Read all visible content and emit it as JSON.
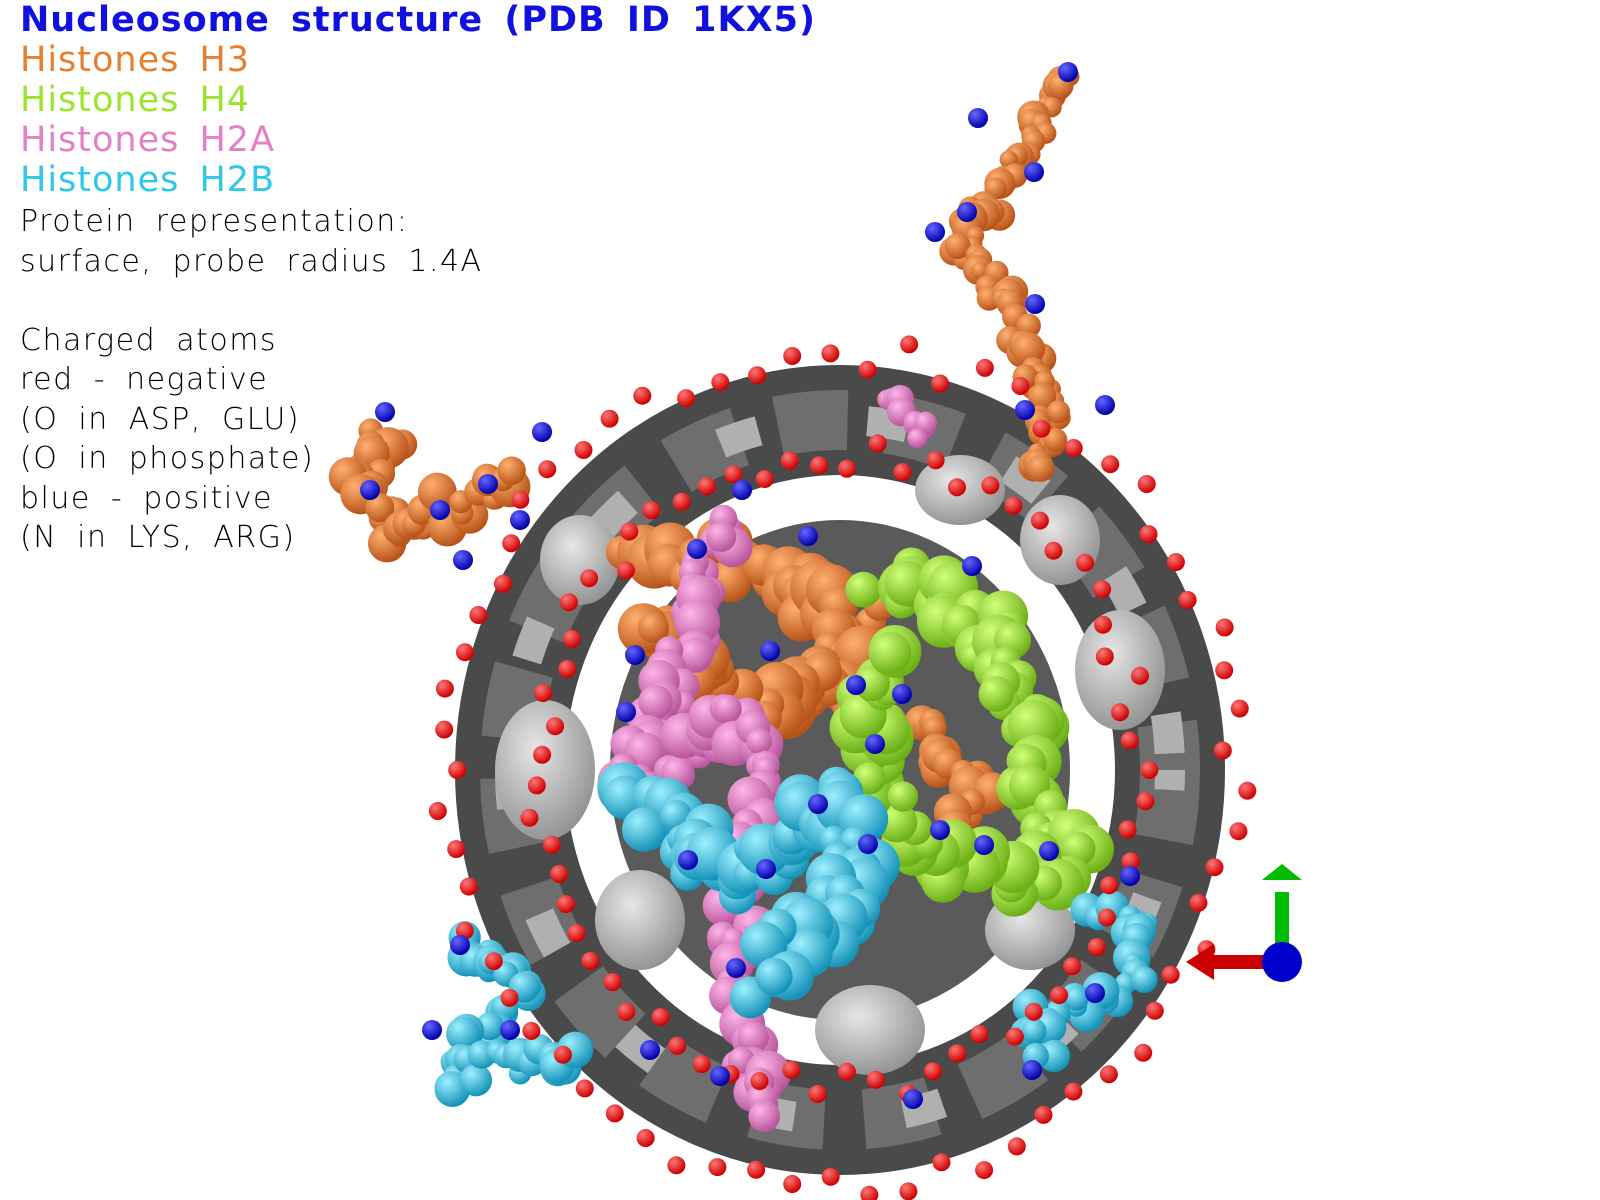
{
  "title": {
    "text": "Nucleosome structure (PDB ID 1KX5)",
    "color": "#1010e0"
  },
  "legend": [
    {
      "label": "Histones H3",
      "color": "#e87f2e"
    },
    {
      "label": "Histones H4",
      "color": "#9be52b"
    },
    {
      "label": "Histones H2A",
      "color": "#e57fc8"
    },
    {
      "label": "Histones H2B",
      "color": "#2ec8ea"
    }
  ],
  "notes": [
    "Protein representation:",
    "surface, probe radius 1.4A",
    "",
    "Charged atoms",
    "red - negative",
    "(O in ASP, GLU)",
    "(O in phosphate)",
    "blue - positive",
    "(N in LYS, ARG)"
  ],
  "colors": {
    "dna_dark": "#555555",
    "dna_light": "#bdbdbd",
    "negative_atom": "#ff0000",
    "positive_atom": "#0000ff",
    "axis_x": "#cc0000",
    "axis_y": "#00bb00",
    "axis_z": "#0000cc"
  }
}
